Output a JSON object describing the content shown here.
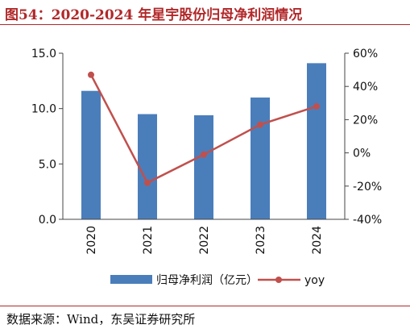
{
  "figure": {
    "title": "图54：2020-2024 年星宇股份归母净利润情况",
    "source": "数据来源：Wind，东吴证券研究所"
  },
  "colors": {
    "accent": "#b1282a",
    "bar": "#4a7ebb",
    "line": "#c0504d"
  },
  "chart_data": {
    "type": "bar",
    "categories": [
      "2020",
      "2021",
      "2022",
      "2023",
      "2024"
    ],
    "series": [
      {
        "name": "归母净利润（亿元）",
        "type": "bar",
        "axis": "left",
        "values": [
          11.6,
          9.5,
          9.4,
          11.0,
          14.1
        ]
      },
      {
        "name": "yoy",
        "type": "line",
        "axis": "right",
        "values": [
          47,
          -18,
          -1,
          17,
          28
        ]
      }
    ],
    "left_axis": {
      "ylim": [
        0,
        15
      ],
      "ticks": [
        "0.0",
        "5.0",
        "10.0",
        "15.0"
      ],
      "tick_values": [
        0,
        5,
        10,
        15
      ]
    },
    "right_axis": {
      "ylim": [
        -40,
        60
      ],
      "ticks": [
        "-40%",
        "-20%",
        "0%",
        "20%",
        "40%",
        "60%"
      ],
      "tick_values": [
        -40,
        -20,
        0,
        20,
        40,
        60
      ]
    },
    "grid": false,
    "legend": "bottom"
  }
}
